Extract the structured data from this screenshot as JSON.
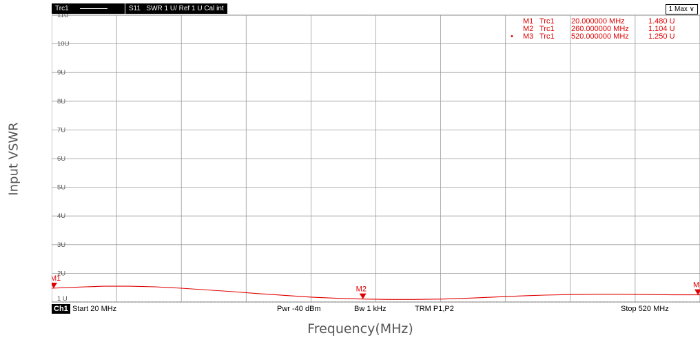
{
  "header": {
    "trace": "Trc1",
    "param": "S11",
    "format_info": "SWR   1 U/ Ref 1 U   Cal int",
    "scale_button": "1 Max"
  },
  "footer": {
    "channel": "Ch1",
    "start": "Start   20 MHz",
    "power": "Pwr   -40 dBm",
    "bandwidth": "Bw    1 kHz",
    "trm": "TRM P1,P2",
    "stop": "Stop   520 MHz"
  },
  "markers": [
    {
      "id": "M1",
      "row_prefix": "",
      "trace": "Trc1",
      "freq": "20.000000  MHz",
      "value": "1.480  U"
    },
    {
      "id": "M2",
      "row_prefix": "",
      "trace": "Trc1",
      "freq": "260.000000  MHz",
      "value": "1.104  U"
    },
    {
      "id": "M3",
      "row_prefix": "•",
      "trace": "Trc1",
      "freq": "520.000000  MHz",
      "value": "1.250  U"
    }
  ],
  "colors": {
    "trace": "#e00000",
    "grid": "#9a9a9a",
    "marker": "#e00000"
  },
  "chart_data": {
    "type": "line",
    "xlabel": "Frequency(MHz)",
    "ylabel": "Input VSWR",
    "xlim": [
      20,
      520
    ],
    "ylim": [
      1,
      11
    ],
    "y_ticks": [
      "1 U",
      "2U",
      "3U",
      "4U",
      "5U",
      "6U",
      "7U",
      "8U",
      "9U",
      "10U",
      "11U"
    ],
    "grid": true,
    "series": [
      {
        "x": [
          20,
          40,
          60,
          80,
          100,
          120,
          140,
          160,
          180,
          200,
          220,
          240,
          260,
          280,
          300,
          320,
          340,
          360,
          380,
          400,
          420,
          440,
          460,
          480,
          500,
          520
        ],
        "values": [
          1.48,
          1.52,
          1.55,
          1.55,
          1.53,
          1.48,
          1.42,
          1.36,
          1.29,
          1.23,
          1.17,
          1.13,
          1.104,
          1.09,
          1.09,
          1.1,
          1.13,
          1.17,
          1.21,
          1.24,
          1.26,
          1.27,
          1.27,
          1.26,
          1.25,
          1.25
        ]
      }
    ],
    "marker_points": [
      {
        "label": "M1",
        "x": 20,
        "y": 1.48
      },
      {
        "label": "M2",
        "x": 260,
        "y": 1.104
      },
      {
        "label": "M3",
        "x": 520,
        "y": 1.25
      }
    ]
  }
}
